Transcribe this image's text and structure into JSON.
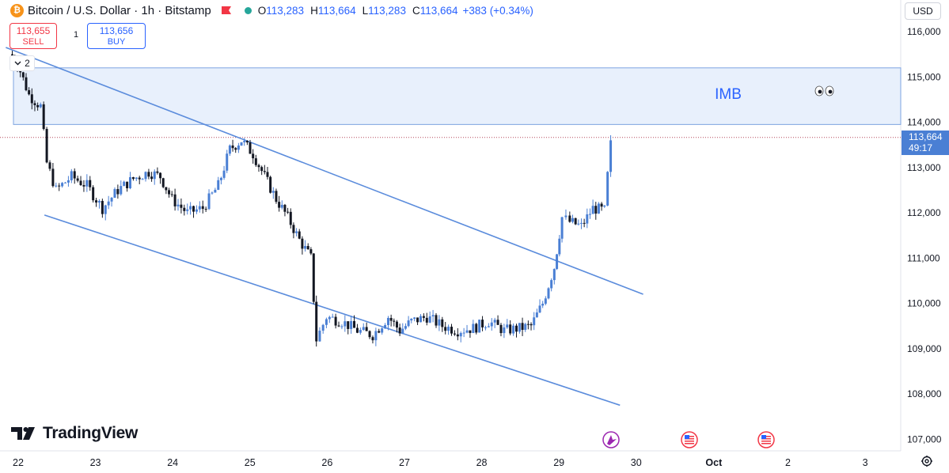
{
  "header": {
    "symbol_title": "Bitcoin / U.S. Dollar · 1h · Bitstamp",
    "ohlc": {
      "o_label": "O",
      "o_value": "113,283",
      "h_label": "H",
      "h_value": "113,664",
      "l_label": "L",
      "l_value": "113,283",
      "c_label": "C",
      "c_value": "113,664"
    },
    "change": "+383 (+0.34%)"
  },
  "trade_panel": {
    "sell_price": "113,655",
    "sell_label": "SELL",
    "spread": "1",
    "buy_price": "113,656",
    "buy_label": "BUY"
  },
  "indicator_toggle": {
    "count": "2"
  },
  "currency_button": "USD",
  "current_price": {
    "price": "113,664",
    "countdown": "49:17"
  },
  "watermark": "TradingView",
  "colors": {
    "up": "#4a7fd4",
    "down": "#131722",
    "accent": "#2962ff",
    "zone": "#e8f0fc",
    "sell": "#f23645"
  },
  "chart_data": {
    "type": "candlestick",
    "y_ticks": [
      "116,000",
      "115,000",
      "114,000",
      "113,000",
      "112,000",
      "111,000",
      "110,000",
      "109,000",
      "108,000",
      "107,000"
    ],
    "x_ticks": [
      "22",
      "23",
      "24",
      "25",
      "26",
      "27",
      "28",
      "29",
      "30",
      "Oct",
      "2",
      "3"
    ],
    "annotation": "IMB",
    "imb_zone": {
      "y_top": 115200,
      "y_bottom": 113950,
      "x_start": 22.0,
      "x_end": "right-edge"
    },
    "channel_upper": [
      {
        "x": 21.85,
        "y": 115650
      },
      {
        "x": 30.1,
        "y": 110200
      }
    ],
    "channel_lower": [
      {
        "x": 22.35,
        "y": 111950
      },
      {
        "x": 29.8,
        "y": 107750
      }
    ],
    "current_price_line": 113664,
    "close_series": [
      {
        "x": 21.9,
        "y": 115500
      },
      {
        "x": 22.0,
        "y": 115300
      },
      {
        "x": 22.15,
        "y": 114600
      },
      {
        "x": 22.3,
        "y": 114350
      },
      {
        "x": 22.38,
        "y": 113100
      },
      {
        "x": 22.5,
        "y": 112500
      },
      {
        "x": 22.7,
        "y": 112800
      },
      {
        "x": 22.9,
        "y": 112600
      },
      {
        "x": 23.1,
        "y": 112100
      },
      {
        "x": 23.3,
        "y": 112500
      },
      {
        "x": 23.5,
        "y": 112750
      },
      {
        "x": 23.7,
        "y": 112900
      },
      {
        "x": 23.85,
        "y": 112800
      },
      {
        "x": 24.0,
        "y": 112300
      },
      {
        "x": 24.2,
        "y": 112000
      },
      {
        "x": 24.4,
        "y": 112100
      },
      {
        "x": 24.6,
        "y": 112600
      },
      {
        "x": 24.75,
        "y": 113400
      },
      {
        "x": 24.9,
        "y": 113600
      },
      {
        "x": 25.05,
        "y": 113300
      },
      {
        "x": 25.2,
        "y": 112800
      },
      {
        "x": 25.35,
        "y": 112300
      },
      {
        "x": 25.5,
        "y": 111900
      },
      {
        "x": 25.65,
        "y": 111400
      },
      {
        "x": 25.8,
        "y": 111000
      },
      {
        "x": 25.87,
        "y": 109200
      },
      {
        "x": 26.0,
        "y": 109700
      },
      {
        "x": 26.2,
        "y": 109600
      },
      {
        "x": 26.4,
        "y": 109400
      },
      {
        "x": 26.6,
        "y": 109300
      },
      {
        "x": 26.8,
        "y": 109700
      },
      {
        "x": 26.95,
        "y": 109400
      },
      {
        "x": 27.1,
        "y": 109600
      },
      {
        "x": 27.3,
        "y": 109700
      },
      {
        "x": 27.5,
        "y": 109500
      },
      {
        "x": 27.7,
        "y": 109400
      },
      {
        "x": 27.9,
        "y": 109450
      },
      {
        "x": 28.1,
        "y": 109600
      },
      {
        "x": 28.3,
        "y": 109400
      },
      {
        "x": 28.5,
        "y": 109450
      },
      {
        "x": 28.65,
        "y": 109500
      },
      {
        "x": 28.8,
        "y": 110000
      },
      {
        "x": 28.95,
        "y": 110800
      },
      {
        "x": 29.05,
        "y": 111900
      },
      {
        "x": 29.15,
        "y": 111800
      },
      {
        "x": 29.3,
        "y": 111700
      },
      {
        "x": 29.45,
        "y": 112100
      },
      {
        "x": 29.6,
        "y": 112050
      },
      {
        "x": 29.68,
        "y": 113600
      }
    ]
  }
}
